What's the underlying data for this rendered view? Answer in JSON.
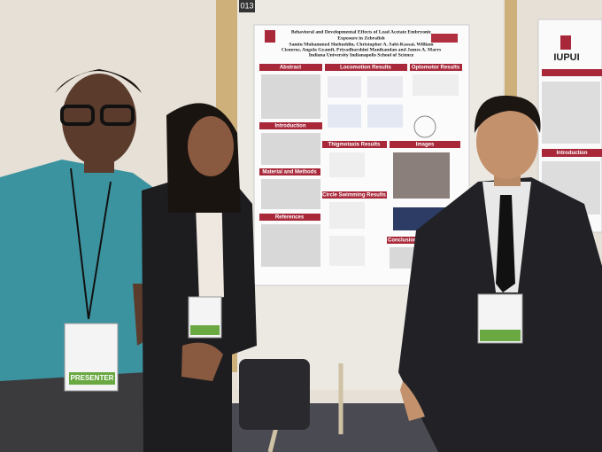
{
  "tag": "013",
  "poster": {
    "title": [
      "Behavioral and Developmental Effects of Lead Acetate Embryonic",
      "Exposure in Zebrafish"
    ],
    "authors": [
      "Samiu Muhammed Shehuddin, Christopher A. Sabi-Kassai, William",
      "Cisneros, Angela Gyamfi, Priyadharshini Manikandan and James A. Marrs"
    ],
    "affiliation": "Indiana University Indianapolis School of Science",
    "sections": [
      "Abstract",
      "Locomotion Results",
      "Optomotor Results",
      "Introduction",
      "Thigmotaxis Results",
      "Images",
      "Material and Methods",
      "Circle Swimming Results",
      "References",
      "Conclusions"
    ]
  },
  "side_poster": {
    "logo": "IUPUI",
    "section": "Introduction"
  },
  "badge": "PRESENTER"
}
